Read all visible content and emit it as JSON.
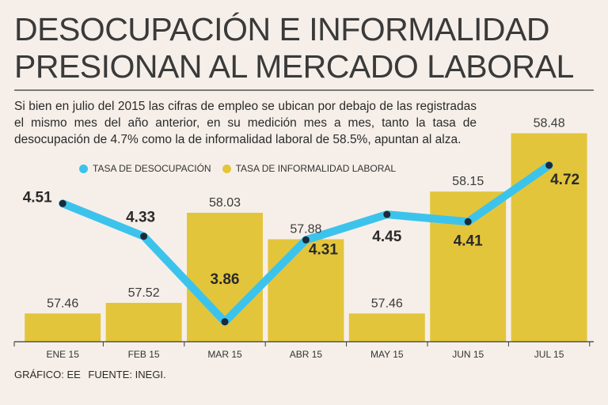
{
  "header": {
    "title_line1": "DESOCUPACIÓN E INFORMALIDAD",
    "title_line2": "PRESIONAN AL MERCADO LABORAL",
    "subtitle": "Si bien en julio del 2015 las cifras de empleo se ubican por debajo de las registradas el mismo mes del año anterior, en su medición mes a mes, tanto la tasa de desocupación de 4.7% como la de informalidad laboral de 58.5%, apuntan al alza."
  },
  "legend": {
    "line_label": "TASA DE DESOCUPACIÓN",
    "bar_label": "TASA DE INFORMALIDAD LABORAL"
  },
  "colors": {
    "bar": "#e3c53c",
    "line": "#3cc3ec",
    "marker": "#1c2a38",
    "axis": "#3a3a3a"
  },
  "footer": {
    "credit": "GRÁFICO: EE",
    "source": "FUENTE: INEGI."
  },
  "chart_data": {
    "type": "bar+line",
    "title": "DESOCUPACIÓN E INFORMALIDAD PRESIONAN AL MERCADO LABORAL",
    "categories": [
      "ENE 15",
      "FEB 15",
      "MAR 15",
      "ABR 15",
      "MAY 15",
      "JUN 15",
      "JUL 15"
    ],
    "series": [
      {
        "name": "TASA DE INFORMALIDAD LABORAL",
        "kind": "bar",
        "values": [
          57.46,
          57.52,
          58.03,
          57.88,
          57.46,
          58.15,
          58.48
        ],
        "labels": [
          "57.46",
          "57.52",
          "58.03",
          "57.88",
          "57.46",
          "58.15",
          "58.48"
        ],
        "ylim": [
          57.3,
          58.5
        ]
      },
      {
        "name": "TASA DE DESOCUPACIÓN",
        "kind": "line",
        "values": [
          4.51,
          4.33,
          3.86,
          4.31,
          4.45,
          4.41,
          4.72
        ],
        "labels": [
          "4.51",
          "4.33",
          "3.86",
          "4.31",
          "4.45",
          "4.41",
          "4.72"
        ],
        "ylim": [
          3.82,
          4.82
        ]
      }
    ],
    "xlabel": "",
    "ylabel": "",
    "grid": false,
    "legend_position": "top-left"
  }
}
